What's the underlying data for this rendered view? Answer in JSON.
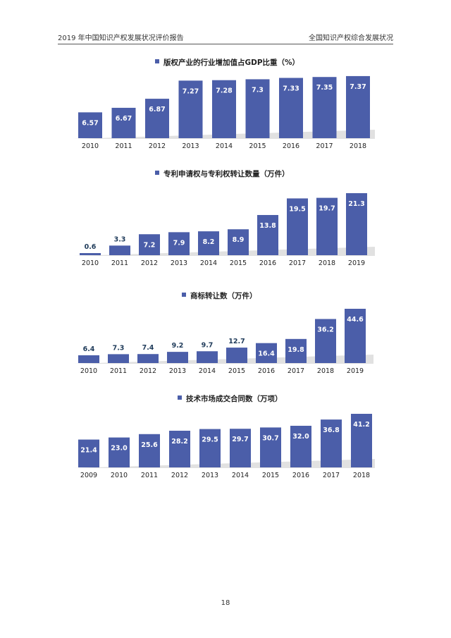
{
  "header": {
    "left": "2019 年中国知识产权发展状况评价报告",
    "right": "全国知识产权综合发展状况"
  },
  "page_number": "18",
  "colors": {
    "bar": "#4B5EA9",
    "shadow": "#c8c8c8",
    "value_dark": "#1f3b5a"
  },
  "chart_data": [
    {
      "type": "bar",
      "title": "版权产业的行业增加值占GDP比重（%）",
      "categories": [
        "2010",
        "2011",
        "2012",
        "2013",
        "2014",
        "2015",
        "2016",
        "2017",
        "2018"
      ],
      "values": [
        6.57,
        6.67,
        6.87,
        7.27,
        7.28,
        7.3,
        7.33,
        7.35,
        7.37
      ],
      "labels": [
        "6.57",
        "6.67",
        "6.87",
        "7.27",
        "7.28",
        "7.3",
        "7.33",
        "7.35",
        "7.37"
      ],
      "ylim": [
        6.0,
        7.4
      ],
      "legend": "top"
    },
    {
      "type": "bar",
      "title": "专利申请权与专利权转让数量（万件）",
      "categories": [
        "2010",
        "2011",
        "2012",
        "2013",
        "2014",
        "2015",
        "2016",
        "2017",
        "2018",
        "2019"
      ],
      "values": [
        0.6,
        3.3,
        7.2,
        7.9,
        8.2,
        8.9,
        13.8,
        19.5,
        19.7,
        21.3
      ],
      "labels": [
        "0.6",
        "3.3",
        "7.2",
        "7.9",
        "8.2",
        "8.9",
        "13.8",
        "19.5",
        "19.7",
        "21.3"
      ],
      "ylim": [
        0,
        21.3
      ],
      "legend": "top"
    },
    {
      "type": "bar",
      "title": "商标转让数（万件）",
      "categories": [
        "2010",
        "2011",
        "2012",
        "2013",
        "2014",
        "2015",
        "2016",
        "2017",
        "2018",
        "2019"
      ],
      "values": [
        6.4,
        7.3,
        7.4,
        9.2,
        9.7,
        12.7,
        16.4,
        19.8,
        36.2,
        44.6
      ],
      "labels": [
        "6.4",
        "7.3",
        "7.4",
        "9.2",
        "9.7",
        "12.7",
        "16.4",
        "19.8",
        "36.2",
        "44.6"
      ],
      "ylim": [
        0,
        44.6
      ],
      "legend": "top"
    },
    {
      "type": "bar",
      "title": "技术市场成交合同数（万项）",
      "categories": [
        "2009",
        "2010",
        "2011",
        "2012",
        "2013",
        "2014",
        "2015",
        "2016",
        "2017",
        "2018"
      ],
      "values": [
        21.4,
        23.0,
        25.6,
        28.2,
        29.5,
        29.7,
        30.7,
        32.0,
        36.8,
        41.2
      ],
      "labels": [
        "21.4",
        "23.0",
        "25.6",
        "28.2",
        "29.5",
        "29.7",
        "30.7",
        "32.0",
        "36.8",
        "41.2"
      ],
      "ylim": [
        0,
        41.2
      ],
      "legend": "top"
    }
  ]
}
